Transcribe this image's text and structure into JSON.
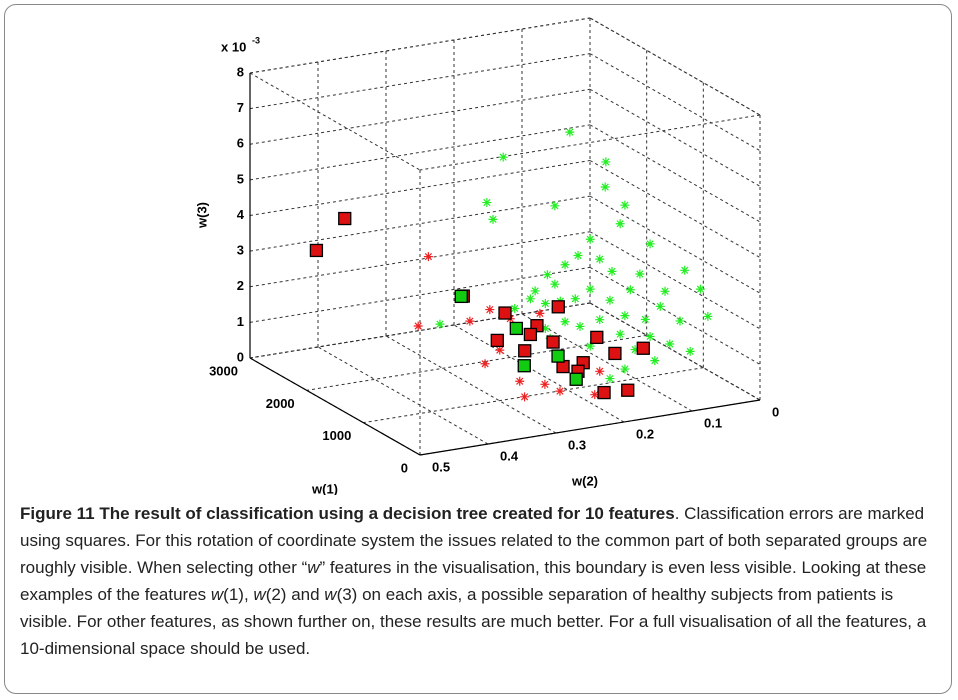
{
  "chart_data": {
    "type": "scatter3d",
    "xlabel": "w(1)",
    "ylabel": "w(2)",
    "zlabel": "w(3)",
    "zscale_base": "x 10",
    "zscale_exponent": "-3",
    "xlim": [
      0,
      3000
    ],
    "ylim": [
      0,
      0.5
    ],
    "zlim": [
      0,
      0.008
    ],
    "xticks": [
      0,
      1000,
      2000,
      3000
    ],
    "yticks": [
      0,
      0.1,
      0.2,
      0.3,
      0.4,
      0.5
    ],
    "zticks": [
      {
        "value": 0,
        "label": "0"
      },
      {
        "value": 0.001,
        "label": "1"
      },
      {
        "value": 0.002,
        "label": "2"
      },
      {
        "value": 0.003,
        "label": "3"
      },
      {
        "value": 0.004,
        "label": "4"
      },
      {
        "value": 0.005,
        "label": "5"
      },
      {
        "value": 0.006,
        "label": "6"
      },
      {
        "value": 0.007,
        "label": "7"
      },
      {
        "value": 0.008,
        "label": "8"
      }
    ],
    "grid": true,
    "series": [
      {
        "color": "#22ee22",
        "marker": "star",
        "x": [
          500,
          500,
          500,
          500,
          500,
          500,
          500,
          500,
          500,
          500,
          500,
          500,
          500,
          500,
          500,
          500,
          500,
          500,
          500,
          500,
          500,
          500,
          500,
          500,
          500,
          500,
          500,
          500,
          500,
          500,
          500,
          500,
          500,
          500,
          500,
          500,
          500,
          500,
          500,
          500,
          500,
          500,
          500,
          500,
          500,
          500,
          500,
          500,
          500,
          500
        ],
        "y": [
          0.238,
          0.336,
          0.36,
          0.351,
          0.26,
          0.185,
          0.186,
          0.157,
          0.12,
          0.164,
          0.208,
          0.226,
          0.245,
          0.271,
          0.289,
          0.26,
          0.194,
          0.176,
          0.149,
          0.135,
          0.098,
          0.076,
          0.105,
          0.127,
          0.157,
          0.179,
          0.208,
          0.23,
          0.252,
          0.274,
          0.296,
          0.319,
          0.194,
          0.164,
          0.12,
          0.091,
          0.061,
          0.035,
          0.223,
          0.245,
          0.208,
          0.179,
          0.157,
          0.267,
          0.113,
          0.429,
          0.046,
          0.069,
          0.274,
          0.142
        ],
        "z": [
          0.0078,
          0.0074,
          0.0062,
          0.0057,
          0.0058,
          0.0068,
          0.0061,
          0.0055,
          0.0043,
          0.005,
          0.0047,
          0.0043,
          0.0041,
          0.0039,
          0.0035,
          0.0036,
          0.0041,
          0.0037,
          0.0031,
          0.0035,
          0.0029,
          0.002,
          0.0025,
          0.0022,
          0.0024,
          0.0029,
          0.0033,
          0.0031,
          0.0031,
          0.0031,
          0.0033,
          0.0031,
          0.0024,
          0.0019,
          0.0017,
          0.0014,
          0.0011,
          0.002,
          0.0023,
          0.0025,
          0.0017,
          0.0007,
          0.0009,
          0.0021,
          0.001,
          0.003,
          0.0028,
          0.0034,
          0.0024,
          0.0014
        ]
      },
      {
        "color": "#ee2222",
        "marker": "star",
        "x": [
          2000,
          2000,
          1000,
          800,
          400,
          500,
          100,
          50,
          100,
          50,
          700,
          800,
          200,
          0
        ],
        "y": [
          0.321,
          0.336,
          0.314,
          0.36,
          0.371,
          0.341,
          0.345,
          0.342,
          0.308,
          0.29,
          0.309,
          0.257,
          0.219,
          0.243
        ],
        "z": [
          0.0032,
          0.0013,
          0.0026,
          0.0026,
          0.0018,
          0.002,
          0.0015,
          0.0011,
          0.0013,
          0.0011,
          0.0026,
          0.0025,
          0.0013,
          0.0009
        ]
      },
      {
        "color": "#dd1111",
        "marker": "square",
        "x": [
          2500,
          2300,
          1000,
          600,
          800,
          400,
          300,
          600,
          400,
          200,
          300,
          600,
          400,
          500,
          100,
          150,
          200,
          500
        ],
        "y": [
          0.444,
          0.419,
          0.353,
          0.325,
          0.23,
          0.353,
          0.321,
          0.278,
          0.271,
          0.273,
          0.235,
          0.19,
          0.18,
          0.13,
          0.221,
          0.182,
          0.251,
          0.296
        ],
        "z": [
          0.0033,
          0.0043,
          0.0031,
          0.0029,
          0.0026,
          0.0024,
          0.0021,
          0.0024,
          0.0021,
          0.0016,
          0.0015,
          0.0018,
          0.0015,
          0.0014,
          0.0008,
          0.0007,
          0.0014,
          0.0023
        ]
      },
      {
        "color": "#11cc11",
        "marker": "square",
        "x": [
          1000,
          700,
          200,
          300,
          100
        ],
        "y": [
          0.356,
          0.3,
          0.33,
          0.272,
          0.262
        ],
        "z": [
          0.0031,
          0.0023,
          0.0018,
          0.0018,
          0.0013
        ]
      }
    ]
  },
  "caption": {
    "runs": [
      {
        "text": "Figure 11 The result of classification using a decision tree created for 10 features",
        "bold": true,
        "italic": false
      },
      {
        "text": ". Classification errors are marked using squares. For this rotation of coordinate system the issues related to the common part of both separated groups are roughly visible. When selecting other “",
        "bold": false,
        "italic": false
      },
      {
        "text": "w",
        "bold": false,
        "italic": true
      },
      {
        "text": "” features in the visualisation, this boundary is even less visible. Looking at these examples of the features ",
        "bold": false,
        "italic": false
      },
      {
        "text": "w",
        "bold": false,
        "italic": true
      },
      {
        "text": "(1), ",
        "bold": false,
        "italic": false
      },
      {
        "text": "w",
        "bold": false,
        "italic": true
      },
      {
        "text": "(2) and ",
        "bold": false,
        "italic": false
      },
      {
        "text": "w",
        "bold": false,
        "italic": true
      },
      {
        "text": "(3) on each axis, a possible separation of healthy subjects from patients is visible. For other features, as shown further on, these results are much better. For a full visualisation of all the features, a 10-dimensional space should be used.",
        "bold": false,
        "italic": false
      }
    ]
  }
}
